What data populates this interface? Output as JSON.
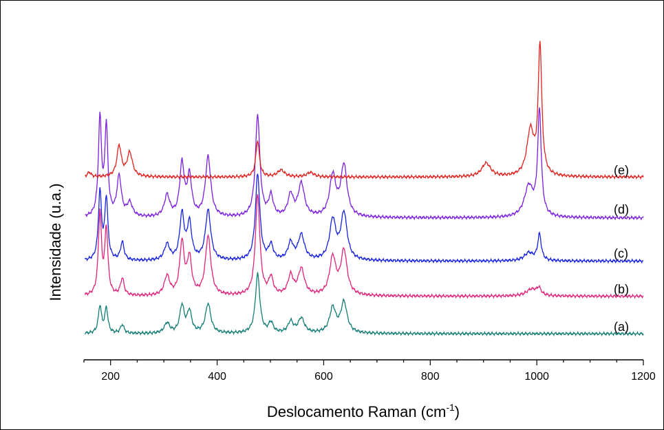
{
  "chart_data": {
    "type": "line",
    "title": "",
    "xlabel": "Deslocamento Raman (cm",
    "xlabel_superscript": "-1",
    "xlabel_suffix": ")",
    "ylabel": "Intensidade (u.a.)",
    "xlim": [
      150,
      1200
    ],
    "x_ticks": [
      200,
      400,
      600,
      800,
      1000,
      1200
    ],
    "x_minor_step": 50,
    "y_ticks_shown": false,
    "grid": false,
    "series": [
      {
        "name": "(a)",
        "color": "#137d74",
        "offset": 0,
        "baseline": 0.15,
        "peaks": [
          [
            180,
            1.2,
            3.5
          ],
          [
            192,
            1.1,
            3.5
          ],
          [
            222,
            0.38,
            4
          ],
          [
            306,
            0.45,
            6
          ],
          [
            334,
            1.2,
            5
          ],
          [
            348,
            0.95,
            5
          ],
          [
            383,
            1.3,
            6
          ],
          [
            476,
            2.6,
            5
          ],
          [
            501,
            0.45,
            5
          ],
          [
            538,
            0.5,
            6
          ],
          [
            558,
            0.65,
            7
          ],
          [
            617,
            1.1,
            7
          ],
          [
            638,
            1.35,
            7
          ]
        ]
      },
      {
        "name": "(b)",
        "color": "#e0237a",
        "offset": 1.65,
        "baseline": 0.15,
        "peaks": [
          [
            180,
            3.6,
            3.5
          ],
          [
            192,
            2.9,
            3.5
          ],
          [
            222,
            0.75,
            4
          ],
          [
            306,
            0.85,
            6
          ],
          [
            334,
            2.3,
            5
          ],
          [
            348,
            1.6,
            5
          ],
          [
            383,
            2.6,
            6
          ],
          [
            476,
            4.4,
            5
          ],
          [
            501,
            0.75,
            5
          ],
          [
            538,
            0.85,
            6
          ],
          [
            558,
            1.15,
            7
          ],
          [
            617,
            1.65,
            7
          ],
          [
            638,
            1.95,
            7
          ],
          [
            990,
            0.3,
            12
          ],
          [
            1004,
            0.3,
            5
          ]
        ]
      },
      {
        "name": "(c)",
        "color": "#1520e0",
        "offset": 3.2,
        "baseline": 0.15,
        "peaks": [
          [
            180,
            3.0,
            3.5
          ],
          [
            192,
            2.7,
            3.5
          ],
          [
            222,
            0.8,
            4
          ],
          [
            306,
            0.7,
            6
          ],
          [
            334,
            2.0,
            5
          ],
          [
            348,
            1.6,
            5
          ],
          [
            383,
            2.2,
            6
          ],
          [
            476,
            3.8,
            5
          ],
          [
            501,
            0.65,
            5
          ],
          [
            538,
            0.75,
            6
          ],
          [
            558,
            1.1,
            7
          ],
          [
            617,
            1.75,
            7
          ],
          [
            638,
            2.05,
            7
          ],
          [
            985,
            0.35,
            10
          ],
          [
            1005,
            1.15,
            4
          ]
        ]
      },
      {
        "name": "(d)",
        "color": "#7a1ee0",
        "offset": 4.7,
        "baseline": 0.55,
        "peaks": [
          [
            180,
            4.3,
            3.5
          ],
          [
            192,
            3.9,
            3.5
          ],
          [
            216,
            1.75,
            5
          ],
          [
            236,
            0.6,
            6
          ],
          [
            306,
            0.95,
            6
          ],
          [
            334,
            2.3,
            5
          ],
          [
            348,
            1.75,
            5
          ],
          [
            383,
            2.65,
            6
          ],
          [
            476,
            4.5,
            5
          ],
          [
            501,
            0.9,
            5
          ],
          [
            538,
            0.95,
            6
          ],
          [
            558,
            1.45,
            7
          ],
          [
            617,
            1.8,
            7
          ],
          [
            638,
            2.25,
            7
          ],
          [
            985,
            1.35,
            10
          ],
          [
            1005,
            4.6,
            4
          ]
        ]
      },
      {
        "name": "(e)",
        "color": "#e0211d",
        "offset": 6.3,
        "baseline": 0.75,
        "peaks": [
          [
            160,
            0.2,
            4
          ],
          [
            216,
            1.35,
            5
          ],
          [
            236,
            1.05,
            6
          ],
          [
            476,
            1.6,
            4
          ],
          [
            520,
            0.3,
            8
          ],
          [
            575,
            0.2,
            8
          ],
          [
            905,
            0.6,
            10
          ],
          [
            988,
            2.0,
            8
          ],
          [
            1006,
            5.7,
            4
          ]
        ]
      }
    ],
    "legend": "inline labels at right end of each trace"
  }
}
